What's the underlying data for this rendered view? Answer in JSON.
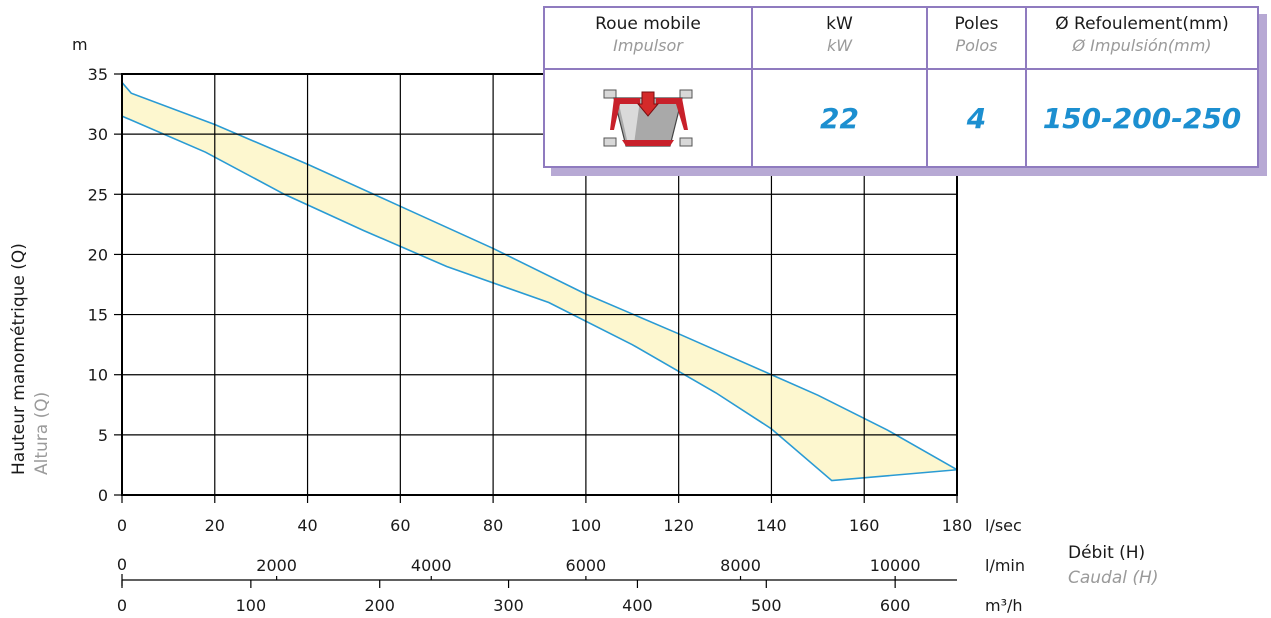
{
  "spec_table": {
    "headers": [
      {
        "main": "Roue mobile",
        "sub": "Impulsor"
      },
      {
        "main": "kW",
        "sub": "kW"
      },
      {
        "main": "Poles",
        "sub": "Polos"
      },
      {
        "main": "Ø Refoulement(mm)",
        "sub": "Ø Impulsión(mm)"
      }
    ],
    "values": {
      "kw": "22",
      "poles": "4",
      "discharge": "150-200-250"
    },
    "impeller_icon": "impeller-icon"
  },
  "chart_data": {
    "type": "area",
    "y_unit": "m",
    "ylabel": "Hauteur manométrique (Q)",
    "ylabel_sub": "Altura (Q)",
    "legend": {
      "main": "Débit (H)",
      "sub": "Caudal (H)"
    },
    "ylim": [
      0,
      35
    ],
    "y_ticks": [
      "0",
      "5",
      "10",
      "15",
      "20",
      "25",
      "30",
      "35"
    ],
    "grid": true,
    "axes": [
      {
        "unit": "l/sec",
        "range": [
          0,
          180
        ],
        "ticks": [
          "0",
          "20",
          "40",
          "60",
          "80",
          "100",
          "120",
          "140",
          "160",
          "180"
        ]
      },
      {
        "unit": "l/min",
        "range": [
          0,
          10800
        ],
        "ticks": [
          "0",
          "2000",
          "4000",
          "6000",
          "8000",
          "10000"
        ]
      },
      {
        "unit": "m³/h",
        "range": [
          0,
          648
        ],
        "ticks": [
          "0",
          "100",
          "200",
          "300",
          "400",
          "500",
          "600"
        ]
      }
    ],
    "series": [
      {
        "role": "upper",
        "color": "#2a9bd4",
        "x": [
          0,
          2,
          20,
          40,
          60,
          80,
          100,
          120,
          140,
          150,
          165,
          180
        ],
        "y": [
          34.3,
          33.4,
          30.8,
          27.5,
          24.0,
          20.5,
          16.7,
          13.4,
          10.0,
          8.3,
          5.4,
          2.1
        ]
      },
      {
        "role": "lower",
        "color": "#2a9bd4",
        "x": [
          0,
          18,
          35,
          52,
          70,
          92,
          110,
          128,
          140,
          153,
          180
        ],
        "y": [
          31.5,
          28.5,
          25.0,
          22.0,
          19.0,
          16.0,
          12.5,
          8.5,
          5.5,
          1.2,
          2.1
        ]
      }
    ],
    "band_color": "#fdf7cf"
  }
}
